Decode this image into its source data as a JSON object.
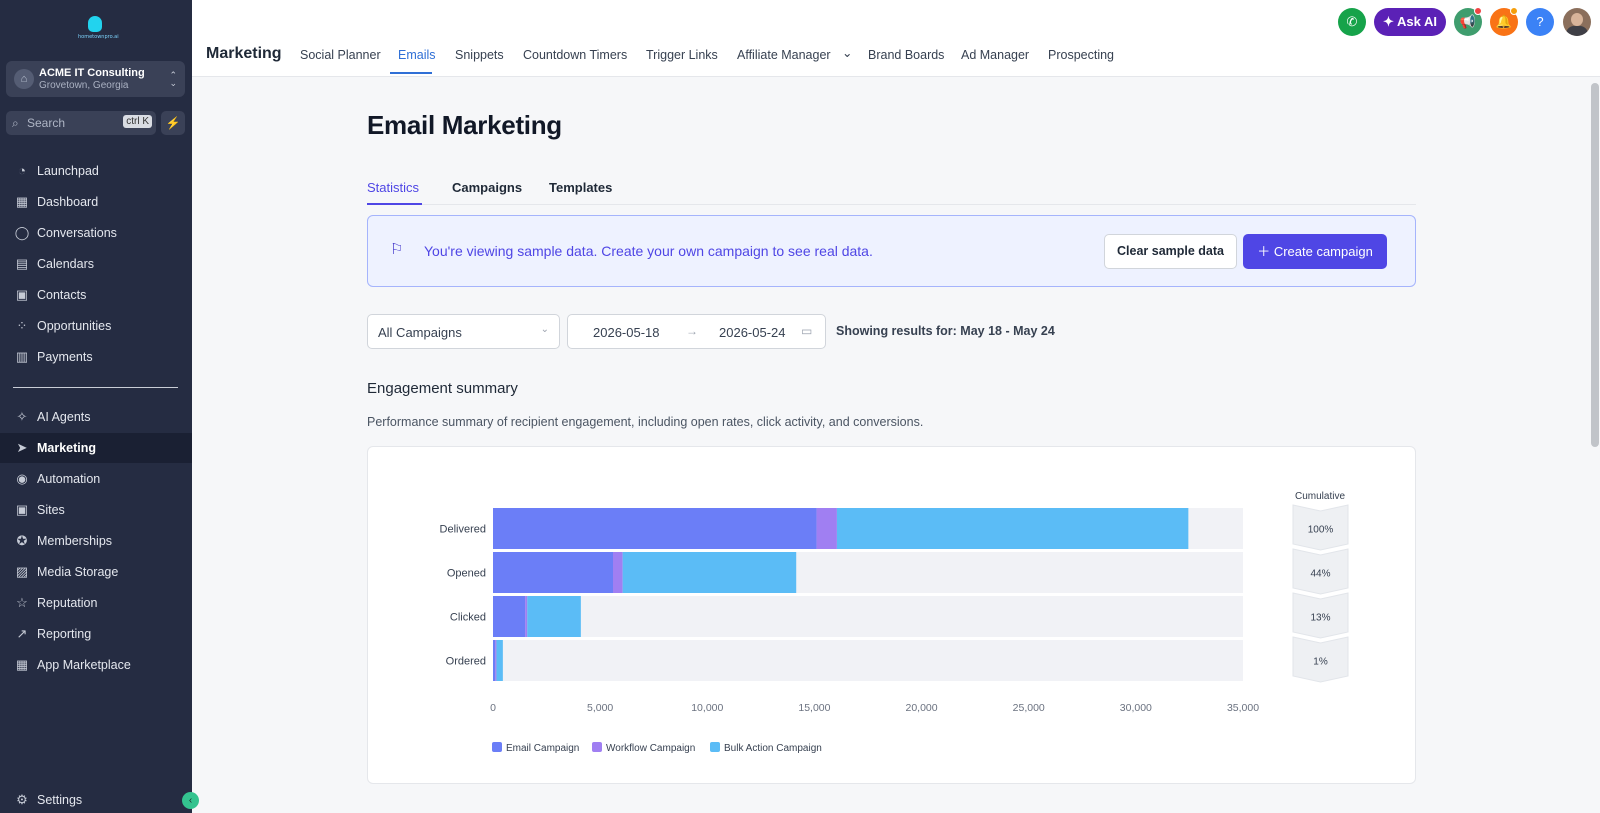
{
  "sidebar": {
    "logo_text": "hometownpro.ai",
    "account": {
      "name": "ACME IT Consulting",
      "location": "Grovetown, Georgia"
    },
    "search": {
      "placeholder": "Search",
      "shortcut": "ctrl K"
    },
    "items": [
      {
        "label": "Launchpad",
        "icon": "rocket-icon"
      },
      {
        "label": "Dashboard",
        "icon": "grid-icon"
      },
      {
        "label": "Conversations",
        "icon": "chat-icon"
      },
      {
        "label": "Calendars",
        "icon": "calendar-icon"
      },
      {
        "label": "Contacts",
        "icon": "contacts-icon"
      },
      {
        "label": "Opportunities",
        "icon": "pipeline-icon"
      },
      {
        "label": "Payments",
        "icon": "receipt-icon"
      }
    ],
    "items2": [
      {
        "label": "AI Agents",
        "icon": "sparkle-icon"
      },
      {
        "label": "Marketing",
        "icon": "send-icon"
      },
      {
        "label": "Automation",
        "icon": "automation-icon"
      },
      {
        "label": "Sites",
        "icon": "sites-icon"
      },
      {
        "label": "Memberships",
        "icon": "badge-icon"
      },
      {
        "label": "Media Storage",
        "icon": "image-icon"
      },
      {
        "label": "Reputation",
        "icon": "star-icon"
      },
      {
        "label": "Reporting",
        "icon": "trend-icon"
      },
      {
        "label": "App Marketplace",
        "icon": "apps-icon"
      }
    ],
    "settings": "Settings",
    "active": "Marketing"
  },
  "topbar": {
    "title": "Marketing",
    "tabs": [
      "Social Planner",
      "Emails",
      "Snippets",
      "Countdown Timers",
      "Trigger Links",
      "Affiliate Manager",
      "Brand Boards",
      "Ad Manager",
      "Prospecting"
    ],
    "active_tab": "Emails",
    "ask_ai": "Ask AI",
    "help": "?"
  },
  "main": {
    "title": "Email Marketing",
    "subtabs": [
      "Statistics",
      "Campaigns",
      "Templates"
    ],
    "active_subtab": "Statistics",
    "banner": {
      "message": "You're viewing sample data. Create your own campaign to see real data.",
      "clear_label": "Clear sample data",
      "create_label": "Create campaign"
    },
    "filter": {
      "campaign": "All Campaigns",
      "start_date": "2026-05-18",
      "end_date": "2026-05-24"
    },
    "results_text": "Showing results for: May 18 - May 24",
    "section_title": "Engagement summary",
    "section_desc": "Performance summary of recipient engagement, including open rates, click activity, and conversions."
  },
  "colors": {
    "email": "#6b7ef7",
    "workflow": "#a07ff2",
    "bulk": "#5bbcf6",
    "accent": "#4f46e5",
    "sidebar": "#252c42"
  },
  "chart_data": {
    "type": "bar",
    "orientation": "horizontal",
    "stacked": true,
    "categories": [
      "Delivered",
      "Opened",
      "Clicked",
      "Ordered"
    ],
    "series": [
      {
        "name": "Email Campaign",
        "values": [
          15100,
          5600,
          1500,
          100
        ]
      },
      {
        "name": "Workflow Campaign",
        "values": [
          950,
          450,
          100,
          60
        ]
      },
      {
        "name": "Bulk Action Campaign",
        "values": [
          16400,
          8100,
          2500,
          300
        ]
      }
    ],
    "xlim": [
      0,
      35000
    ],
    "xticks": [
      "0",
      "5,000",
      "10,000",
      "15,000",
      "20,000",
      "25,000",
      "30,000",
      "35,000"
    ],
    "cumulative_label": "Cumulative",
    "cumulative": [
      "100%",
      "44%",
      "13%",
      "1%"
    ],
    "legend_position": "bottom-left"
  }
}
